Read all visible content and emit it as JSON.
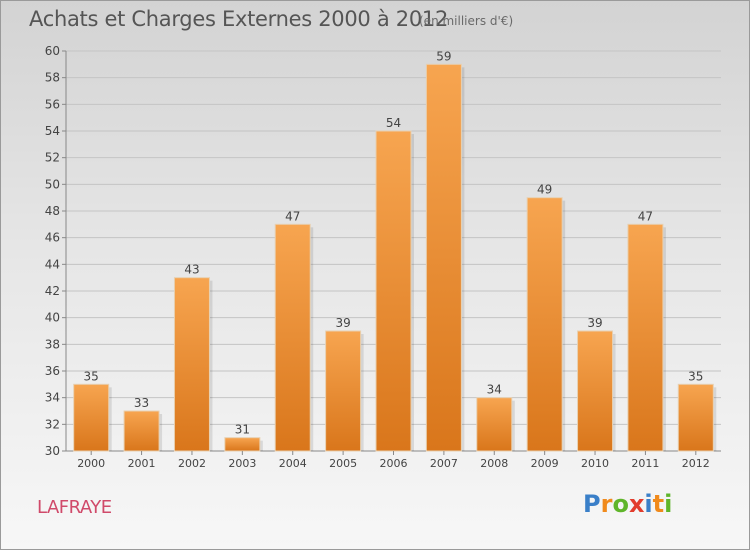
{
  "header": {
    "title": "Achats et Charges Externes 2000 à 2012",
    "subtitle": "(en milliers d'€)"
  },
  "footer": {
    "commune": "LAFRAYE",
    "logo": [
      "P",
      "r",
      "o",
      "x",
      "i",
      "t",
      "i"
    ]
  },
  "colors": {
    "bar_top": "#f7a550",
    "bar_bottom": "#d9761b",
    "logo": [
      "#3a7fc8",
      "#f08a1c",
      "#5fb52a",
      "#e23c2c",
      "#3a7fc8",
      "#f08a1c",
      "#5fb52a"
    ]
  },
  "chart_data": {
    "type": "bar",
    "categories": [
      "2000",
      "2001",
      "2002",
      "2003",
      "2004",
      "2005",
      "2006",
      "2007",
      "2008",
      "2009",
      "2010",
      "2011",
      "2012"
    ],
    "values": [
      35,
      33,
      43,
      31,
      47,
      39,
      54,
      59,
      34,
      49,
      39,
      47,
      35
    ],
    "title": "Achats et Charges Externes 2000 à 2012",
    "subtitle": "(en milliers d'€)",
    "ylim": [
      30,
      60
    ],
    "yticks": [
      30,
      32,
      34,
      36,
      38,
      40,
      42,
      44,
      46,
      48,
      50,
      52,
      54,
      56,
      58,
      60
    ],
    "ytick_labels": [
      "30",
      "32",
      "34",
      "36",
      "38",
      "40",
      "42",
      "44",
      "46",
      "48",
      "50",
      "52",
      "54",
      "56",
      "58",
      "60"
    ],
    "grid": true,
    "data_labels": true
  }
}
